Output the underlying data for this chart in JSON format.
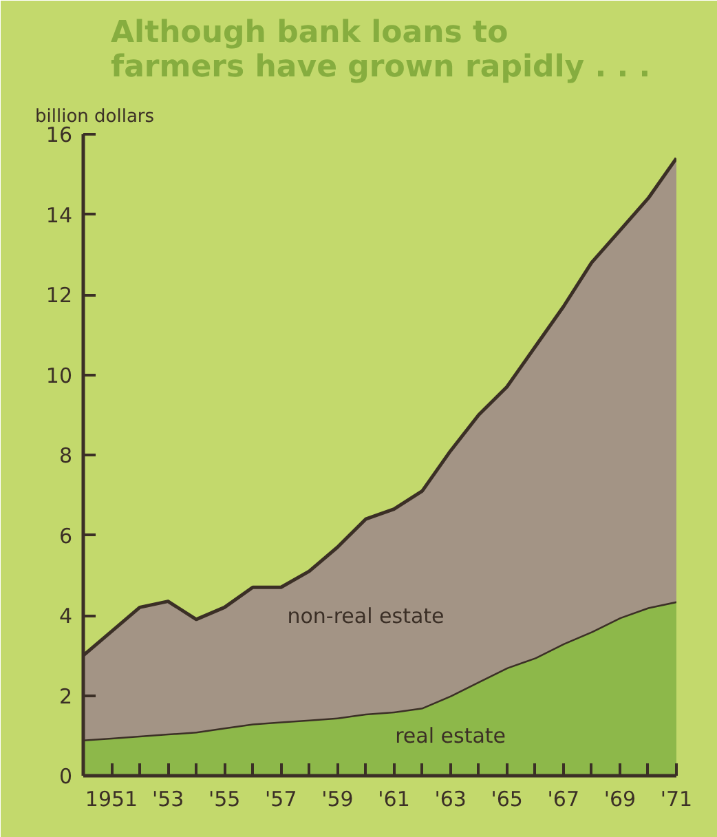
{
  "chart_data": {
    "type": "area",
    "stacked": true,
    "title": "Although bank loans to\nfarmers have grown rapidly . . .",
    "ylabel": "billion dollars",
    "x": [
      1950,
      1951,
      1952,
      1953,
      1954,
      1955,
      1956,
      1957,
      1958,
      1959,
      1960,
      1961,
      1962,
      1963,
      1964,
      1965,
      1966,
      1967,
      1968,
      1969,
      1970,
      1971
    ],
    "series": [
      {
        "name": "real estate",
        "color": "#8db84a",
        "values": [
          0.9,
          0.95,
          1.0,
          1.05,
          1.1,
          1.2,
          1.3,
          1.35,
          1.4,
          1.45,
          1.55,
          1.6,
          1.7,
          2.0,
          2.35,
          2.7,
          2.95,
          3.3,
          3.6,
          3.95,
          4.2,
          4.35
        ]
      },
      {
        "name": "non-real estate",
        "color": "#a39485",
        "values": [
          2.1,
          2.65,
          3.2,
          3.3,
          2.8,
          3.0,
          3.4,
          3.35,
          3.7,
          4.25,
          4.85,
          5.05,
          5.4,
          6.1,
          6.65,
          7.0,
          7.75,
          8.4,
          9.2,
          9.65,
          10.2,
          11.05
        ]
      }
    ],
    "xlim": [
      1950,
      1971
    ],
    "xticks": [
      {
        "value": 1951,
        "label": "1951"
      },
      {
        "value": 1952,
        "label": null
      },
      {
        "value": 1953,
        "label": "'53"
      },
      {
        "value": 1954,
        "label": null
      },
      {
        "value": 1955,
        "label": "'55"
      },
      {
        "value": 1956,
        "label": null
      },
      {
        "value": 1957,
        "label": "'57"
      },
      {
        "value": 1958,
        "label": null
      },
      {
        "value": 1959,
        "label": "'59"
      },
      {
        "value": 1960,
        "label": null
      },
      {
        "value": 1961,
        "label": "'61"
      },
      {
        "value": 1962,
        "label": null
      },
      {
        "value": 1963,
        "label": "'63"
      },
      {
        "value": 1964,
        "label": null
      },
      {
        "value": 1965,
        "label": "'65"
      },
      {
        "value": 1966,
        "label": null
      },
      {
        "value": 1967,
        "label": "'67"
      },
      {
        "value": 1968,
        "label": null
      },
      {
        "value": 1969,
        "label": "'69"
      },
      {
        "value": 1970,
        "label": null
      },
      {
        "value": 1971,
        "label": "'71"
      }
    ],
    "ylim": [
      0,
      16
    ],
    "yticks": [
      0,
      2,
      4,
      6,
      8,
      10,
      12,
      14,
      16
    ],
    "grid": false
  }
}
